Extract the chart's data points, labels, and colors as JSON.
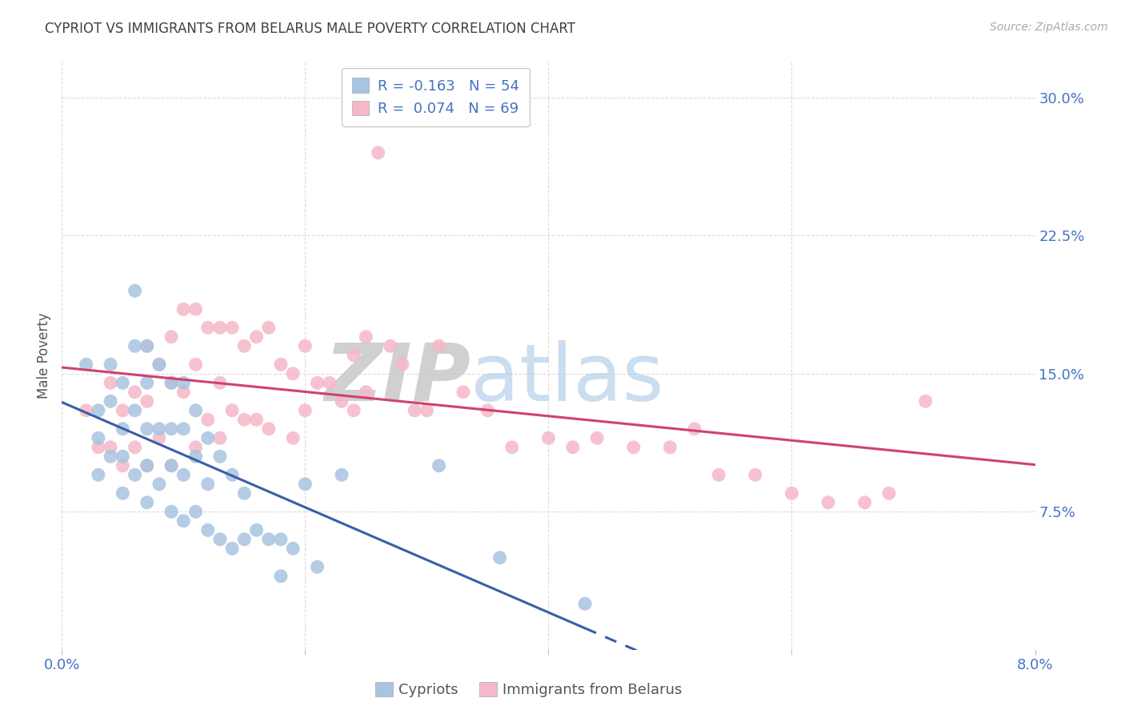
{
  "title": "CYPRIOT VS IMMIGRANTS FROM BELARUS MALE POVERTY CORRELATION CHART",
  "source": "Source: ZipAtlas.com",
  "ylabel": "Male Poverty",
  "xlim": [
    0.0,
    0.08
  ],
  "ylim": [
    0.0,
    0.32
  ],
  "legend_blue_R": "R = -0.163",
  "legend_blue_N": "N = 54",
  "legend_pink_R": "R =  0.074",
  "legend_pink_N": "N = 69",
  "legend_label_blue": "Cypriots",
  "legend_label_pink": "Immigrants from Belarus",
  "blue_scatter_color": "#a8c4e0",
  "pink_scatter_color": "#f5b8c8",
  "blue_line_color": "#3a5ea8",
  "pink_line_color": "#d04070",
  "axis_tick_color": "#4472c4",
  "title_color": "#404040",
  "grid_color": "#d8d8d8",
  "blue_scatter_x": [
    0.002,
    0.003,
    0.003,
    0.003,
    0.004,
    0.004,
    0.004,
    0.005,
    0.005,
    0.005,
    0.005,
    0.006,
    0.006,
    0.006,
    0.006,
    0.007,
    0.007,
    0.007,
    0.007,
    0.007,
    0.008,
    0.008,
    0.008,
    0.009,
    0.009,
    0.009,
    0.009,
    0.01,
    0.01,
    0.01,
    0.01,
    0.011,
    0.011,
    0.011,
    0.012,
    0.012,
    0.012,
    0.013,
    0.013,
    0.014,
    0.014,
    0.015,
    0.015,
    0.016,
    0.017,
    0.018,
    0.018,
    0.019,
    0.02,
    0.021,
    0.023,
    0.031,
    0.036,
    0.043
  ],
  "blue_scatter_y": [
    0.155,
    0.13,
    0.115,
    0.095,
    0.155,
    0.135,
    0.105,
    0.145,
    0.12,
    0.105,
    0.085,
    0.195,
    0.165,
    0.13,
    0.095,
    0.165,
    0.145,
    0.12,
    0.1,
    0.08,
    0.155,
    0.12,
    0.09,
    0.145,
    0.12,
    0.1,
    0.075,
    0.145,
    0.12,
    0.095,
    0.07,
    0.13,
    0.105,
    0.075,
    0.115,
    0.09,
    0.065,
    0.105,
    0.06,
    0.095,
    0.055,
    0.085,
    0.06,
    0.065,
    0.06,
    0.06,
    0.04,
    0.055,
    0.09,
    0.045,
    0.095,
    0.1,
    0.05,
    0.025
  ],
  "pink_scatter_x": [
    0.002,
    0.003,
    0.004,
    0.004,
    0.005,
    0.005,
    0.006,
    0.006,
    0.007,
    0.007,
    0.007,
    0.008,
    0.008,
    0.009,
    0.009,
    0.009,
    0.01,
    0.01,
    0.011,
    0.011,
    0.011,
    0.012,
    0.012,
    0.013,
    0.013,
    0.013,
    0.014,
    0.014,
    0.015,
    0.015,
    0.016,
    0.016,
    0.017,
    0.017,
    0.018,
    0.019,
    0.019,
    0.02,
    0.02,
    0.021,
    0.022,
    0.023,
    0.024,
    0.024,
    0.025,
    0.025,
    0.026,
    0.026,
    0.027,
    0.028,
    0.029,
    0.03,
    0.031,
    0.033,
    0.035,
    0.037,
    0.04,
    0.042,
    0.044,
    0.047,
    0.05,
    0.052,
    0.054,
    0.057,
    0.06,
    0.063,
    0.066,
    0.068,
    0.071
  ],
  "pink_scatter_y": [
    0.13,
    0.11,
    0.145,
    0.11,
    0.13,
    0.1,
    0.14,
    0.11,
    0.165,
    0.135,
    0.1,
    0.155,
    0.115,
    0.17,
    0.145,
    0.1,
    0.185,
    0.14,
    0.185,
    0.155,
    0.11,
    0.175,
    0.125,
    0.175,
    0.145,
    0.115,
    0.175,
    0.13,
    0.165,
    0.125,
    0.17,
    0.125,
    0.175,
    0.12,
    0.155,
    0.15,
    0.115,
    0.165,
    0.13,
    0.145,
    0.145,
    0.135,
    0.16,
    0.13,
    0.17,
    0.14,
    0.29,
    0.27,
    0.165,
    0.155,
    0.13,
    0.13,
    0.165,
    0.14,
    0.13,
    0.11,
    0.115,
    0.11,
    0.115,
    0.11,
    0.11,
    0.12,
    0.095,
    0.095,
    0.085,
    0.08,
    0.08,
    0.085,
    0.135
  ]
}
